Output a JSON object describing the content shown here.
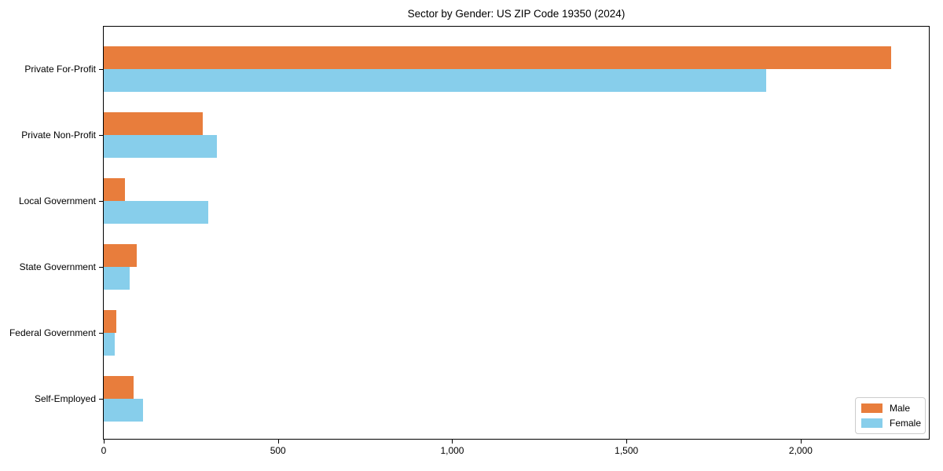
{
  "chart_data": {
    "type": "bar",
    "orientation": "horizontal",
    "title": "Sector by Gender: US ZIP Code 19350 (2024)",
    "categories": [
      "Private For-Profit",
      "Private Non-Profit",
      "Local Government",
      "State Government",
      "Federal Government",
      "Self-Employed"
    ],
    "series": [
      {
        "name": "Male",
        "color": "#E87D3C",
        "values": [
          2260,
          285,
          60,
          95,
          35,
          85
        ]
      },
      {
        "name": "Female",
        "color": "#87CEEB",
        "values": [
          1900,
          325,
          300,
          75,
          32,
          113
        ]
      }
    ],
    "xlabel": "",
    "ylabel": "",
    "xlim": [
      0,
      2370
    ],
    "xticks": [
      0,
      500,
      1000,
      1500,
      2000
    ],
    "xtick_labels": [
      "0",
      "500",
      "1,000",
      "1,500",
      "2,000"
    ],
    "grid": false,
    "legend_position": "lower right",
    "colors": {
      "background": "#ffffff",
      "spine": "#000000",
      "text": "#000000",
      "legend_border": "#cccccc"
    }
  }
}
